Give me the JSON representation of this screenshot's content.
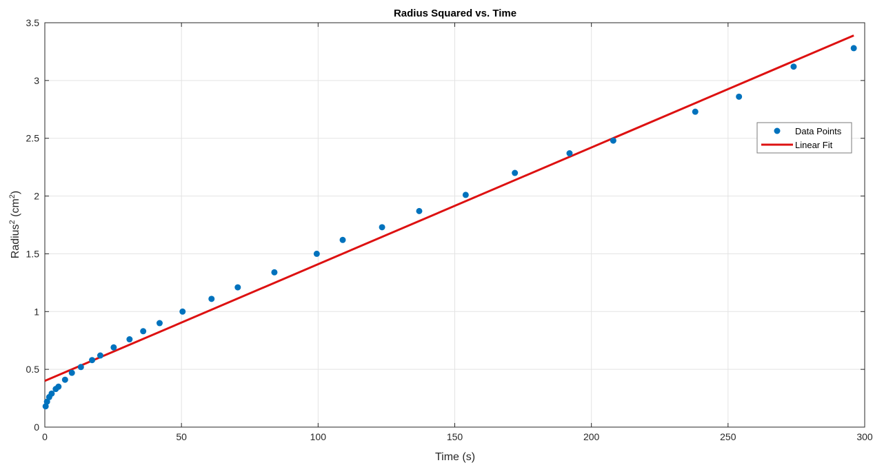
{
  "chart_data": {
    "type": "scatter",
    "title": "Radius Squared vs. Time",
    "xlabel": "Time (s)",
    "ylabel_base": "Radius",
    "ylabel_sup": "2",
    "ylabel_unit_pre": " (cm",
    "ylabel_unit_sup": "2",
    "ylabel_unit_post": ")",
    "xlim": [
      0,
      300
    ],
    "ylim": [
      0,
      3.5
    ],
    "xticks": [
      0,
      50,
      100,
      150,
      200,
      250,
      300
    ],
    "xtick_labels": [
      "0",
      "50",
      "100",
      "150",
      "200",
      "250",
      "300"
    ],
    "yticks": [
      0,
      0.5,
      1,
      1.5,
      2,
      2.5,
      3,
      3.5
    ],
    "ytick_labels": [
      "0",
      "0.5",
      "1",
      "1.5",
      "2",
      "2.5",
      "3",
      "3.5"
    ],
    "grid": true,
    "legend_position": "right",
    "series": [
      {
        "name": "Data Points",
        "style": "markers",
        "color": "#0072BD",
        "x": [
          0.3,
          0.8,
          1.6,
          2.5,
          4.0,
          5.0,
          7.4,
          9.9,
          13.2,
          17.3,
          20.3,
          25.2,
          31.0,
          36.0,
          42.0,
          50.4,
          61.0,
          70.6,
          84.0,
          99.5,
          109.0,
          123.4,
          137.0,
          154.0,
          172.0,
          192.0,
          208.0,
          238.0,
          254.0,
          274.0,
          296.0
        ],
        "y": [
          0.18,
          0.22,
          0.26,
          0.29,
          0.33,
          0.35,
          0.41,
          0.47,
          0.52,
          0.58,
          0.62,
          0.69,
          0.76,
          0.83,
          0.9,
          1.0,
          1.11,
          1.21,
          1.34,
          1.5,
          1.62,
          1.73,
          1.87,
          2.01,
          2.2,
          2.37,
          2.48,
          2.73,
          2.86,
          3.12,
          3.28
        ]
      },
      {
        "name": "Linear Fit",
        "style": "line",
        "color": "#DD1111",
        "x": [
          0,
          296
        ],
        "y": [
          0.4,
          3.39
        ]
      }
    ]
  }
}
